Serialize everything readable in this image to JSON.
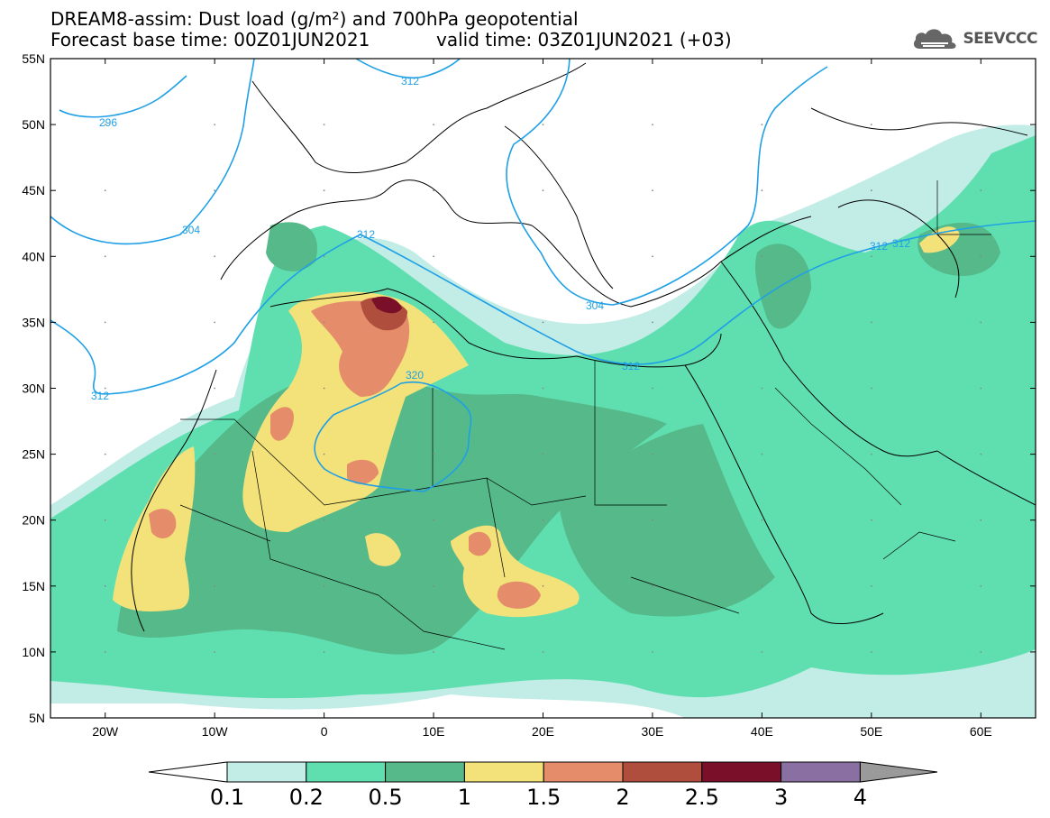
{
  "header": {
    "title_line1": "DREAM8-assim: Dust load (g/m²) and 700hPa geopotential",
    "title_line2": "Forecast base time: 00Z01JUN2021",
    "valid_time": "valid time: 03Z01JUN2021 (+03)",
    "logo_text": "SEEVCCC"
  },
  "map": {
    "lat_labels": [
      "55N",
      "50N",
      "45N",
      "40N",
      "35N",
      "30N",
      "25N",
      "20N",
      "15N",
      "10N",
      "5N"
    ],
    "lon_labels": [
      "20W",
      "10W",
      "0",
      "10E",
      "20E",
      "30E",
      "40E",
      "50E",
      "60E"
    ],
    "contour_labels": [
      "296",
      "304",
      "312",
      "312",
      "312",
      "312",
      "320",
      "304",
      "312",
      "312"
    ],
    "contour_color": "#1fa0e6"
  },
  "colorbar": {
    "labels": [
      "0.1",
      "0.2",
      "0.5",
      "1",
      "1.5",
      "2",
      "2.5",
      "3",
      "4"
    ],
    "colors": [
      "#ffffff",
      "#c2ece6",
      "#5fdfb0",
      "#55b98a",
      "#f3e27a",
      "#e58d6a",
      "#b04e3e",
      "#7a0f2a",
      "#8a6fa3",
      "#9a9a9a"
    ]
  }
}
